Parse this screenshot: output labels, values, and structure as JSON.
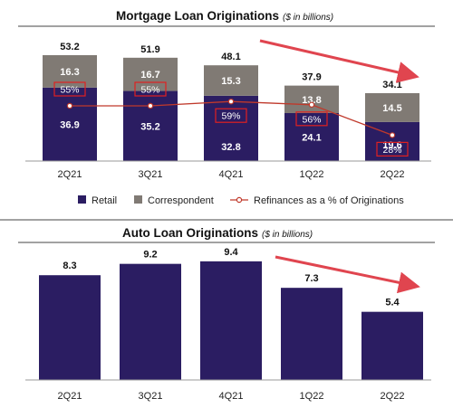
{
  "mortgage": {
    "title": "Mortgage Loan Originations",
    "unit": "($ in billions)",
    "legend": {
      "retail": "Retail",
      "correspondent": "Correspondent",
      "refinance": "Refinances as a % of Originations"
    }
  },
  "auto": {
    "title": "Auto Loan Originations",
    "unit": "($ in billions)"
  },
  "colors": {
    "retail": "#2b1d62",
    "correspondent": "#807a74",
    "line": "#c0392b",
    "arrow": "#e0454f",
    "highlight": "#e02020",
    "divider": "#444444"
  },
  "chart_data": [
    {
      "type": "bar",
      "stacked": true,
      "title": "Mortgage Loan Originations",
      "categories": [
        "2Q21",
        "3Q21",
        "4Q21",
        "1Q22",
        "2Q22"
      ],
      "totals": [
        53.2,
        51.9,
        48.1,
        37.9,
        34.1
      ],
      "series": [
        {
          "name": "Retail",
          "values": [
            36.9,
            35.2,
            32.8,
            24.1,
            19.6
          ]
        },
        {
          "name": "Correspondent",
          "values": [
            16.3,
            16.7,
            15.3,
            13.8,
            14.5
          ]
        }
      ],
      "line": {
        "name": "Refinances as a % of Originations",
        "values": [
          55,
          55,
          59,
          56,
          28
        ],
        "labels": [
          "55%",
          "55%",
          "59%",
          "56%",
          "28%"
        ]
      },
      "legend_position": "bottom"
    },
    {
      "type": "bar",
      "title": "Auto Loan Originations",
      "categories": [
        "2Q21",
        "3Q21",
        "4Q21",
        "1Q22",
        "2Q22"
      ],
      "values": [
        8.3,
        9.2,
        9.4,
        7.3,
        5.4
      ]
    }
  ]
}
